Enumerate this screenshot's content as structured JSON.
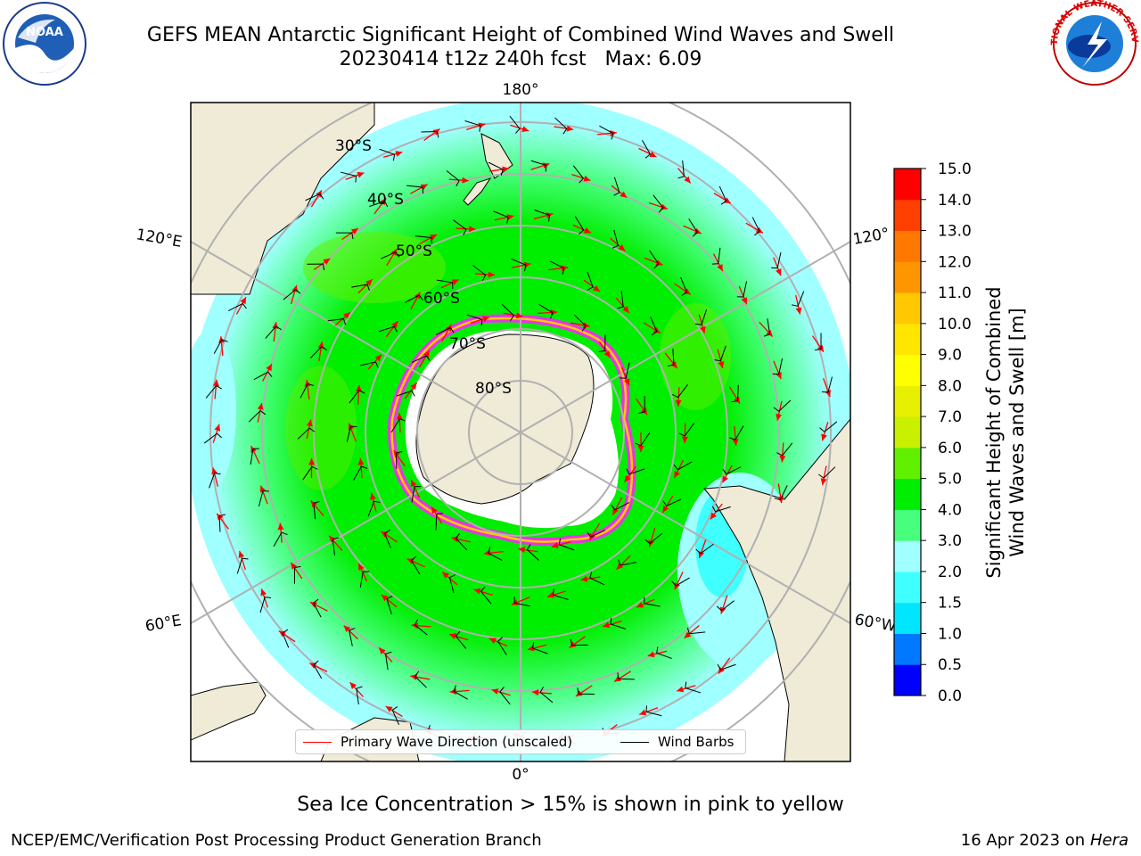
{
  "title": {
    "line1": "GEFS MEAN Antarctic Significant Height of Combined Wind Waves and Swell",
    "line2": "20230414 t12z 240h fcst   Max: 6.09"
  },
  "map": {
    "lon_labels": {
      "top": "180°",
      "bottom": "0°",
      "left_upper": "120°E",
      "right_upper": "120°",
      "left_lower": "60°E",
      "right_lower": "60°W"
    },
    "lat_labels": [
      "30°S",
      "40°S",
      "50°S",
      "60°S",
      "70°S",
      "80°S"
    ]
  },
  "colorbar": {
    "ticks": [
      "0.0",
      "0.5",
      "1.0",
      "1.5",
      "2.0",
      "3.0",
      "4.0",
      "5.0",
      "6.0",
      "7.0",
      "8.0",
      "9.0",
      "10.0",
      "11.0",
      "12.0",
      "13.0",
      "14.0",
      "15.0"
    ],
    "colors": [
      "#0000ff",
      "#0078ff",
      "#00e6ff",
      "#40ffff",
      "#a0ffff",
      "#47ff7c",
      "#00ee00",
      "#60f000",
      "#c8f000",
      "#e6f000",
      "#ffff00",
      "#ffe600",
      "#ffc800",
      "#ff9600",
      "#ff7800",
      "#ff4000",
      "#ff0000"
    ],
    "label_line1": "Significant Height of Combined",
    "label_line2": "Wind Waves and Swell [m]"
  },
  "legend": {
    "primary_wave": "Primary Wave Direction (unscaled)",
    "wind_barbs": "Wind Barbs",
    "primary_wave_color": "#ff0000",
    "wind_barbs_color": "#000000"
  },
  "caption": "Sea Ice Concentration > 15% is shown in pink to yellow",
  "footer": {
    "left": "NCEP/EMC/Verification Post Processing Product Generation Branch",
    "right_date": "16 Apr 2023 on",
    "right_host": "Hera"
  },
  "logos": {
    "noaa_text": "NOAA",
    "nws_text": "NATIONAL WEATHER SERVICE"
  }
}
